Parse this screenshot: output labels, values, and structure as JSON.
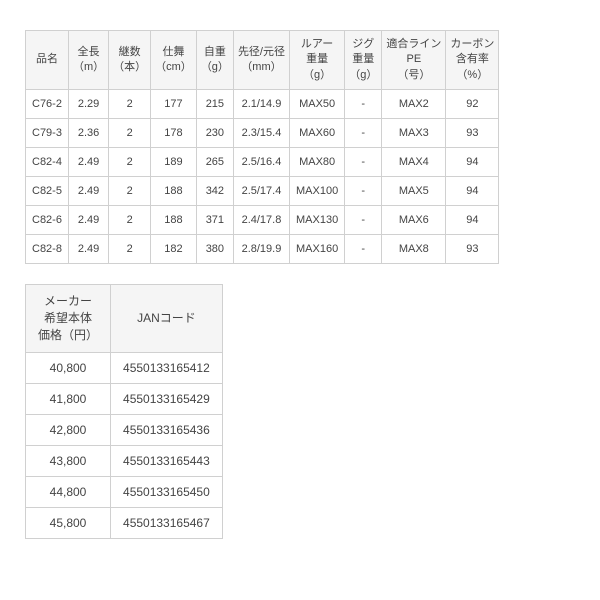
{
  "table1": {
    "columns": [
      {
        "line1": "品名",
        "line2": ""
      },
      {
        "line1": "全長",
        "line2": "（m）"
      },
      {
        "line1": "継数",
        "line2": "（本）"
      },
      {
        "line1": "仕舞",
        "line2": "（cm）"
      },
      {
        "line1": "自重",
        "line2": "（g）"
      },
      {
        "line1": "先径/元径",
        "line2": "（mm）"
      },
      {
        "line1": "ルアー",
        "line2": "重量",
        "line3": "（g）"
      },
      {
        "line1": "ジグ",
        "line2": "重量",
        "line3": "（g）"
      },
      {
        "line1": "適合ライン",
        "line2": "PE",
        "line3": "（号）"
      },
      {
        "line1": "カーボン",
        "line2": "含有率",
        "line3": "（%）"
      }
    ],
    "rows": [
      [
        "C76-2",
        "2.29",
        "2",
        "177",
        "215",
        "2.1/14.9",
        "MAX50",
        "-",
        "MAX2",
        "92"
      ],
      [
        "C79-3",
        "2.36",
        "2",
        "178",
        "230",
        "2.3/15.4",
        "MAX60",
        "-",
        "MAX3",
        "93"
      ],
      [
        "C82-4",
        "2.49",
        "2",
        "189",
        "265",
        "2.5/16.4",
        "MAX80",
        "-",
        "MAX4",
        "94"
      ],
      [
        "C82-5",
        "2.49",
        "2",
        "188",
        "342",
        "2.5/17.4",
        "MAX100",
        "-",
        "MAX5",
        "94"
      ],
      [
        "C82-6",
        "2.49",
        "2",
        "188",
        "371",
        "2.4/17.8",
        "MAX130",
        "-",
        "MAX6",
        "94"
      ],
      [
        "C82-8",
        "2.49",
        "2",
        "182",
        "380",
        "2.8/19.9",
        "MAX160",
        "-",
        "MAX8",
        "93"
      ]
    ]
  },
  "table2": {
    "columns": [
      {
        "line1": "メーカー",
        "line2": "希望本体",
        "line3": "価格（円）"
      },
      {
        "line1": "JANコード",
        "line2": "",
        "line3": ""
      }
    ],
    "rows": [
      [
        "40,800",
        "4550133165412"
      ],
      [
        "41,800",
        "4550133165429"
      ],
      [
        "42,800",
        "4550133165436"
      ],
      [
        "43,800",
        "4550133165443"
      ],
      [
        "44,800",
        "4550133165450"
      ],
      [
        "45,800",
        "4550133165467"
      ]
    ]
  }
}
